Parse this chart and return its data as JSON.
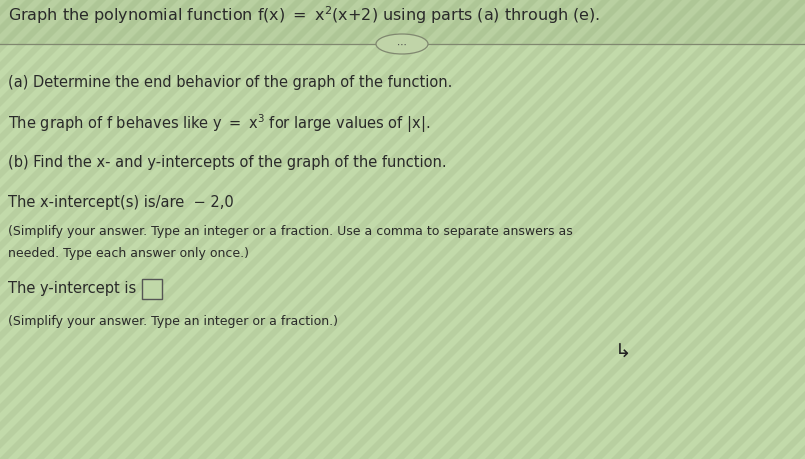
{
  "bg_color": "#b8cfa0",
  "title_bg_color": "#a8c090",
  "body_bg_color": "#c0d8a8",
  "font_color": "#2a2a2a",
  "small_font_color": "#2a2a2a",
  "divider_color": "#808870",
  "ellipse_face": "#c0d4a8",
  "ellipse_edge": "#808870",
  "title_str": "Graph the polynomial function f(x) = x$^{2}$(x + 2) using parts (a) through (e).",
  "line_a": "(a) Determine the end behavior of the graph of the function.",
  "line_behaves": "The graph of f behaves like y = x$^{3}$ for large values of |x|.",
  "line_b": "(b) Find the x- and y-intercepts of the graph of the function.",
  "line_xint": "The x-intercept(s) is/are  − 2,0",
  "line_small1": "(Simplify your answer. Type an integer or a fraction. Use a comma to separate answers as",
  "line_small2": "needed. Type each answer only once.)",
  "line_yint": "The y-intercept is ",
  "line_small3": "(Simplify your answer. Type an integer or a fraction.)",
  "title_fontsize": 11.5,
  "body_fontsize": 10.5,
  "small_fontsize": 9.0,
  "stripe_color_light": "#d0e8b8",
  "stripe_color_dark": "#b0c898"
}
